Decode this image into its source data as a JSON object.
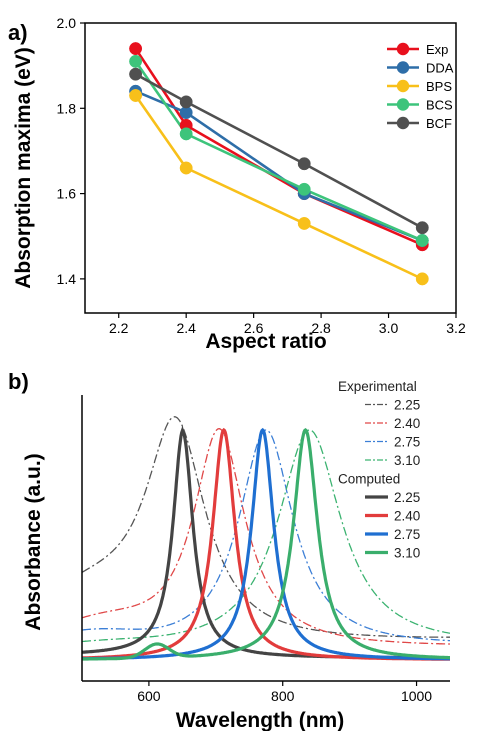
{
  "chart_data": [
    {
      "panel_label": "a)",
      "type": "line",
      "xlabel": "Aspect ratio",
      "ylabel": "Absorption maxima (eV)",
      "xlim": [
        2.1,
        3.2
      ],
      "ylim": [
        1.32,
        2.0
      ],
      "x_ticks": [
        "2.2",
        "2.4",
        "2.6",
        "2.8",
        "3.0",
        "3.2"
      ],
      "y_ticks": [
        "1.4",
        "1.6",
        "1.8",
        "2.0"
      ],
      "x": [
        2.25,
        2.4,
        2.75,
        3.1
      ],
      "legend_position": "top-right",
      "grid": false,
      "series": [
        {
          "name": "Exp",
          "color": "#e8101d",
          "values": [
            1.94,
            1.76,
            1.6,
            1.48
          ]
        },
        {
          "name": "DDA",
          "color": "#2e6ea8",
          "values": [
            1.84,
            1.79,
            1.6,
            1.49
          ]
        },
        {
          "name": "BPS",
          "color": "#f8c01a",
          "values": [
            1.83,
            1.66,
            1.53,
            1.4
          ]
        },
        {
          "name": "BCS",
          "color": "#3dc47b",
          "values": [
            1.91,
            1.74,
            1.61,
            1.49
          ]
        },
        {
          "name": "BCF",
          "color": "#505050",
          "values": [
            1.88,
            1.815,
            1.67,
            1.52
          ]
        }
      ]
    },
    {
      "panel_label": "b)",
      "type": "line",
      "xlabel": "Wavelength (nm)",
      "ylabel": "Absorbance (a.u.)",
      "xlim": [
        500,
        1050
      ],
      "x_ticks": [
        "600",
        "800",
        "1000"
      ],
      "legend_position": "top-right",
      "grid": false,
      "legend_groups": [
        "Experimental",
        "Computed"
      ],
      "series": [
        {
          "group": "Experimental",
          "name": "2.25",
          "color": "#555555",
          "style": "dashdot",
          "peak": 640,
          "fwhm": 110,
          "baseline": 0.055,
          "shoulder": {
            "center": 505,
            "width": 85,
            "amp": 0.2
          },
          "tail": 0.02
        },
        {
          "group": "Experimental",
          "name": "2.40",
          "color": "#e04848",
          "style": "dashdot",
          "peak": 705,
          "fwhm": 95,
          "baseline": 0.04,
          "shoulder": {
            "center": 525,
            "width": 75,
            "amp": 0.1
          },
          "tail": 0.01
        },
        {
          "group": "Experimental",
          "name": "2.75",
          "color": "#3c7fd6",
          "style": "dashdot",
          "peak": 775,
          "fwhm": 100,
          "baseline": 0.035,
          "shoulder": {
            "center": 510,
            "width": 70,
            "amp": 0.065
          },
          "tail": 0.02
        },
        {
          "group": "Experimental",
          "name": "3.10",
          "color": "#3cb371",
          "style": "dashdot",
          "peak": 840,
          "fwhm": 115,
          "baseline": 0.035,
          "shoulder": {
            "center": 530,
            "width": 75,
            "amp": 0.02
          },
          "tail": 0.02
        },
        {
          "group": "Computed",
          "name": "2.25",
          "color": "#444444",
          "style": "solid",
          "peak": 651,
          "fwhm": 36,
          "baseline": 0.02,
          "bump": {
            "center": 600,
            "width": 25,
            "amp": 0
          }
        },
        {
          "group": "Computed",
          "name": "2.40",
          "color": "#e23c3c",
          "style": "solid",
          "peak": 712,
          "fwhm": 40,
          "baseline": 0.0,
          "bump": {
            "center": 610,
            "width": 22,
            "amp": 0.0
          }
        },
        {
          "group": "Computed",
          "name": "2.75",
          "color": "#1f6fd1",
          "style": "solid",
          "peak": 770,
          "fwhm": 40,
          "baseline": 0.0,
          "bump": {
            "center": 610,
            "width": 22,
            "amp": 0.0
          }
        },
        {
          "group": "Computed",
          "name": "3.10",
          "color": "#3aae6c",
          "style": "solid",
          "peak": 834,
          "fwhm": 44,
          "baseline": 0.0,
          "bump": {
            "center": 612,
            "width": 18,
            "amp": 0.06
          }
        }
      ]
    }
  ]
}
